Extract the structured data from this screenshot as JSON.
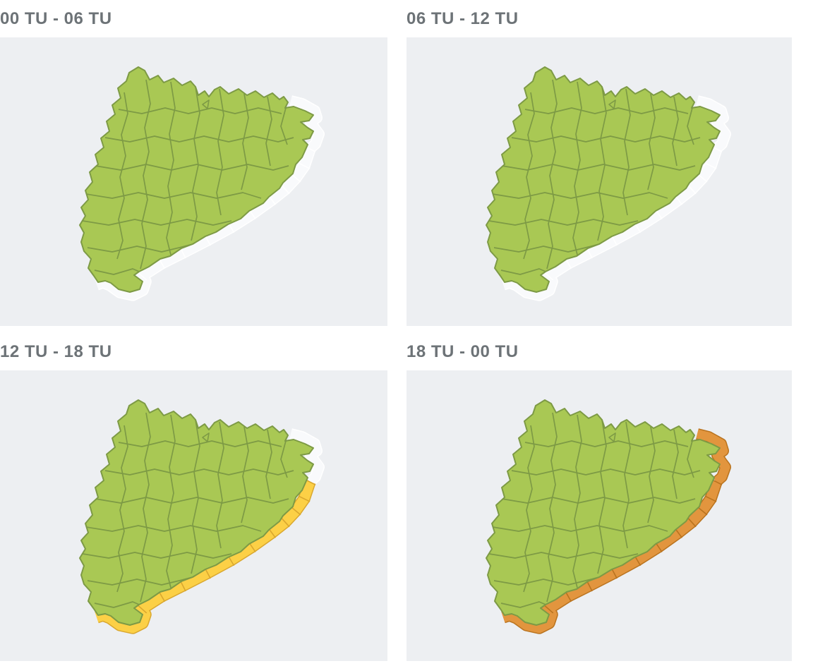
{
  "panels": [
    {
      "title": "00 TU - 06 TU",
      "coastal_warning": "none",
      "cap_de_creus_warning": "none"
    },
    {
      "title": "06 TU - 12 TU",
      "coastal_warning": "none",
      "cap_de_creus_warning": "none"
    },
    {
      "title": "12 TU - 18 TU",
      "coastal_warning": "yellow",
      "cap_de_creus_warning": "none"
    },
    {
      "title": "18 TU - 00 TU",
      "coastal_warning": "orange",
      "cap_de_creus_warning": "orange"
    }
  ],
  "map": {
    "region": "Catalunya",
    "colors": {
      "panel_background": "#edeff2",
      "land_fill": "#a9c854",
      "land_border": "#7d9a45",
      "title_text": "#6d7377",
      "warning_none_fill": "#f9fafc",
      "warning_none_border": "#ffffff",
      "warning_yellow_fill": "#fcd046",
      "warning_yellow_border": "#d9a72f",
      "warning_orange_fill": "#e2953e",
      "warning_orange_border": "#b9731f"
    }
  }
}
